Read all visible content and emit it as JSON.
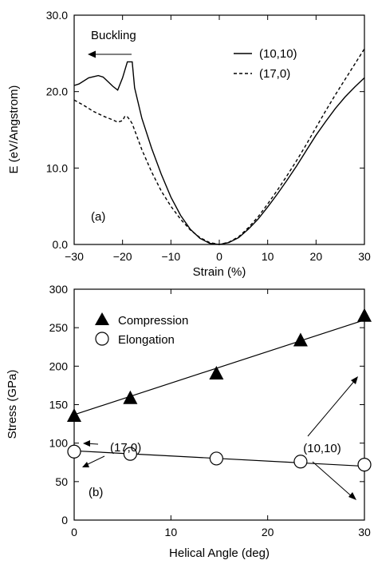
{
  "chart_data": [
    {
      "panel": "(a)",
      "type": "line",
      "xlabel": "Strain (%)",
      "ylabel": "E (eV/Angstrom)",
      "xlim": [
        -30,
        30
      ],
      "ylim": [
        0,
        30
      ],
      "x_ticks": [
        -30,
        -20,
        -10,
        0,
        10,
        20,
        30
      ],
      "x_tick_labels": [
        "−30",
        "−20",
        "−10",
        "0",
        "10",
        "20",
        "30"
      ],
      "y_ticks": [
        0,
        10,
        20,
        30
      ],
      "y_tick_labels": [
        "0.0",
        "10.0",
        "20.0",
        "30.0"
      ],
      "legend_position": "top-right",
      "annotations": [
        "Buckling"
      ],
      "series": [
        {
          "name": "(10,10)",
          "style": "solid",
          "x": [
            -30,
            -29,
            -27,
            -25,
            -24,
            -23,
            -22,
            -21,
            -20,
            -19,
            -18.6,
            -18,
            -17.5,
            -16,
            -14,
            -12,
            -10,
            -8,
            -6,
            -4,
            -2,
            0,
            2,
            4,
            6,
            8,
            10,
            12,
            14,
            16,
            18,
            20,
            22,
            24,
            26,
            28,
            30
          ],
          "y": [
            20.8,
            21.0,
            21.8,
            22.1,
            21.9,
            21.3,
            20.7,
            20.2,
            21.8,
            23.9,
            23.9,
            23.9,
            20.5,
            16.5,
            12.6,
            9.2,
            6.2,
            3.8,
            2.0,
            0.8,
            0.15,
            0.0,
            0.25,
            0.9,
            2.0,
            3.3,
            4.9,
            6.6,
            8.4,
            10.3,
            12.3,
            14.3,
            16.1,
            17.8,
            19.3,
            20.6,
            21.8
          ]
        },
        {
          "name": "(17,0)",
          "style": "dashed",
          "x": [
            -30,
            -28,
            -26,
            -24,
            -22,
            -21,
            -20,
            -19.5,
            -19,
            -18.5,
            -18,
            -16,
            -14,
            -12,
            -10,
            -8,
            -6,
            -4,
            -2,
            0,
            2,
            4,
            6,
            8,
            10,
            12,
            14,
            16,
            18,
            20,
            22,
            24,
            26,
            28,
            30
          ],
          "y": [
            18.9,
            18.2,
            17.4,
            16.8,
            16.3,
            16.0,
            16.2,
            16.8,
            16.7,
            16.3,
            15.8,
            12.4,
            9.5,
            7.0,
            5.0,
            3.3,
            1.9,
            0.9,
            0.25,
            0.0,
            0.3,
            1.0,
            2.2,
            3.6,
            5.3,
            7.1,
            9.0,
            11.0,
            13.1,
            15.3,
            17.5,
            19.6,
            21.6,
            23.6,
            25.6
          ]
        }
      ]
    },
    {
      "panel": "(b)",
      "type": "scatter",
      "xlabel": "Helical Angle (deg)",
      "ylabel": "Stress (GPa)",
      "xlim": [
        0,
        30
      ],
      "ylim": [
        0,
        300
      ],
      "x_ticks": [
        0,
        10,
        20,
        30
      ],
      "x_tick_labels": [
        "0",
        "10",
        "20",
        "30"
      ],
      "y_ticks": [
        0,
        50,
        100,
        150,
        200,
        250,
        300
      ],
      "y_tick_labels": [
        "0",
        "50",
        "100",
        "150",
        "200",
        "250",
        "300"
      ],
      "legend_position": "top-left",
      "annotations": [
        "(17,0)",
        "(10,10)"
      ],
      "series": [
        {
          "name": "Compression",
          "marker": "filled-triangle",
          "x": [
            0,
            5.8,
            14.7,
            23.4,
            30
          ],
          "y": [
            135,
            158,
            190,
            233,
            265
          ],
          "fit_line": [
            [
              0,
              137
            ],
            [
              30,
              260
            ]
          ]
        },
        {
          "name": "Elongation",
          "marker": "open-circle",
          "x": [
            0,
            5.8,
            14.7,
            23.4,
            30
          ],
          "y": [
            89,
            86,
            80,
            76,
            72
          ],
          "fit_line": [
            [
              0,
              90
            ],
            [
              30,
              70
            ]
          ]
        }
      ]
    }
  ]
}
